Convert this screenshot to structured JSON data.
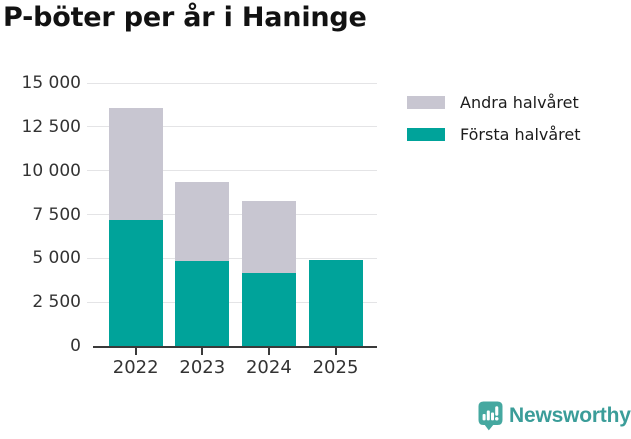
{
  "title": "P-böter per år i Haninge",
  "colors": {
    "first_half": "#00a39a",
    "second_half": "#c8c6d1",
    "grid": "#e4e4e6",
    "axis": "#3a3a3a",
    "tick_text": "#333333",
    "title_text": "#121212",
    "logo_teal": "#3b9d99",
    "logo_icon_teal": "#45a8a0"
  },
  "chart_data": {
    "type": "bar",
    "stacked": true,
    "title": "P-böter per år i Haninge",
    "categories": [
      "2022",
      "2023",
      "2024",
      "2025"
    ],
    "series": [
      {
        "name": "Första halvåret",
        "color_key": "first_half",
        "values": [
          7200,
          4850,
          4150,
          4900
        ]
      },
      {
        "name": "Andra halvåret",
        "color_key": "second_half",
        "values": [
          6400,
          4500,
          4100,
          0
        ]
      }
    ],
    "totals": [
      13600,
      9350,
      8250,
      4900
    ],
    "xlabel": "",
    "ylabel": "",
    "ylim": [
      0,
      15000
    ],
    "ytick_step": 2500,
    "ytick_labels": [
      "0",
      "2 500",
      "5 000",
      "7 500",
      "10 000",
      "12 500",
      "15 000"
    ],
    "grid": true,
    "legend_position": "right"
  },
  "legend": {
    "items": [
      {
        "label": "Andra halvåret",
        "color_key": "second_half"
      },
      {
        "label": "Första halvåret",
        "color_key": "first_half"
      }
    ]
  },
  "footer": {
    "brand": "Newsworthy"
  }
}
